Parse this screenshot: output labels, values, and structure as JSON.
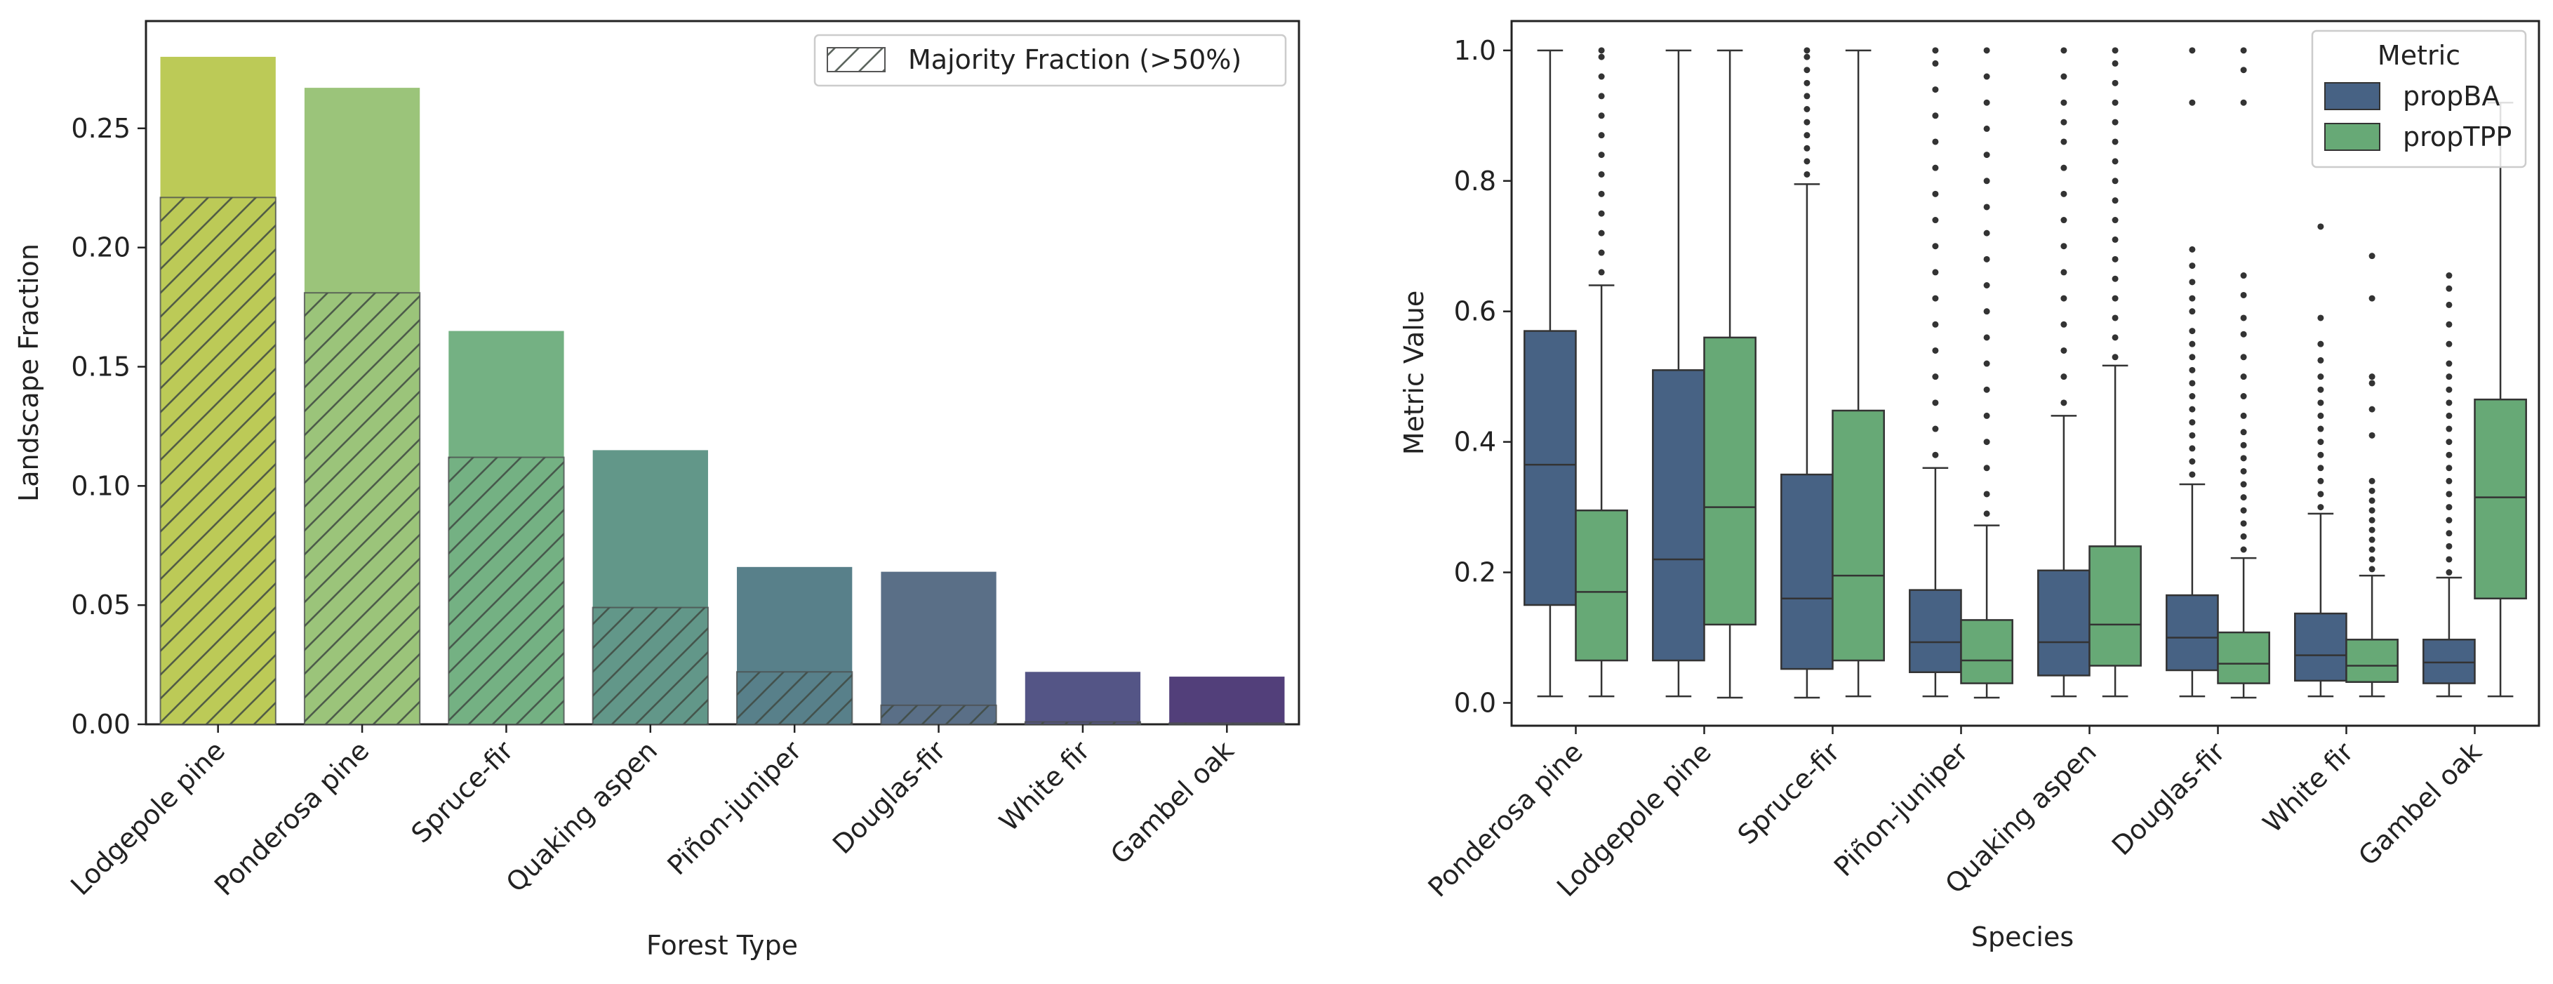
{
  "chart_data": [
    {
      "type": "bar",
      "title": "",
      "xlabel": "Forest Type",
      "ylabel": "Landscape Fraction",
      "ylim": [
        0,
        0.295
      ],
      "yticks": [
        "0.00",
        "0.05",
        "0.10",
        "0.15",
        "0.20",
        "0.25"
      ],
      "categories": [
        "Lodgepole pine",
        "Ponderosa pine",
        "Spruce-fir",
        "Quaking aspen",
        "Piñon-juniper",
        "Douglas-fir",
        "White fir",
        "Gambel oak"
      ],
      "series": [
        {
          "values": [
            0.28,
            0.267,
            0.165,
            0.115,
            0.066,
            0.064,
            0.022,
            0.02
          ]
        },
        {
          "name": "Majority Fraction (>50%)",
          "values": [
            0.221,
            0.181,
            0.112,
            0.049,
            0.022,
            0.008,
            0.001,
            0.0005
          ]
        }
      ],
      "bar_colors": [
        "#bcca57",
        "#9bc47a",
        "#74b183",
        "#629789",
        "#58808a",
        "#5a6f87",
        "#545586",
        "#523f7a"
      ],
      "legend": {
        "placement": "top-right",
        "label": "Majority Fraction (>50%)"
      },
      "grid": false
    },
    {
      "type": "box",
      "title": "",
      "xlabel": "Species",
      "ylabel": "Metric Value",
      "ylim": [
        -0.035,
        1.045
      ],
      "yticks": [
        "0.0",
        "0.2",
        "0.4",
        "0.6",
        "0.8",
        "1.0"
      ],
      "categories": [
        "Ponderosa pine",
        "Lodgepole pine",
        "Spruce-fir",
        "Piñon-juniper",
        "Quaking aspen",
        "Douglas-fir",
        "White fir",
        "Gambel oak"
      ],
      "legend": {
        "title": "Metric",
        "placement": "top-right"
      },
      "grid": false,
      "series": [
        {
          "name": "propBA",
          "color": "#476284",
          "boxes": [
            {
              "whislo": 0.01,
              "q1": 0.15,
              "med": 0.365,
              "q3": 0.57,
              "whishi": 1.0,
              "fliers": []
            },
            {
              "whislo": 0.01,
              "q1": 0.065,
              "med": 0.22,
              "q3": 0.51,
              "whishi": 1.0,
              "fliers": []
            },
            {
              "whislo": 0.008,
              "q1": 0.052,
              "med": 0.16,
              "q3": 0.35,
              "whishi": 0.795,
              "fliers": [
                0.81,
                0.83,
                0.85,
                0.87,
                0.89,
                0.91,
                0.93,
                0.95,
                0.97,
                0.99,
                1.0
              ]
            },
            {
              "whislo": 0.01,
              "q1": 0.047,
              "med": 0.093,
              "q3": 0.173,
              "whishi": 0.36,
              "fliers": [
                0.38,
                0.42,
                0.46,
                0.5,
                0.54,
                0.58,
                0.62,
                0.66,
                0.7,
                0.74,
                0.78,
                0.82,
                0.86,
                0.9,
                0.94,
                0.98,
                1.0
              ]
            },
            {
              "whislo": 0.01,
              "q1": 0.042,
              "med": 0.093,
              "q3": 0.203,
              "whishi": 0.44,
              "fliers": [
                0.46,
                0.5,
                0.54,
                0.58,
                0.62,
                0.66,
                0.7,
                0.74,
                0.78,
                0.82,
                0.86,
                0.89,
                0.92,
                0.96,
                1.0
              ]
            },
            {
              "whislo": 0.01,
              "q1": 0.05,
              "med": 0.1,
              "q3": 0.165,
              "whishi": 0.335,
              "fliers": [
                0.35,
                0.37,
                0.39,
                0.41,
                0.43,
                0.45,
                0.47,
                0.49,
                0.51,
                0.53,
                0.55,
                0.57,
                0.6,
                0.62,
                0.645,
                0.67,
                0.695,
                0.92,
                1.0
              ]
            },
            {
              "whislo": 0.01,
              "q1": 0.034,
              "med": 0.073,
              "q3": 0.137,
              "whishi": 0.29,
              "fliers": [
                0.3,
                0.32,
                0.34,
                0.36,
                0.38,
                0.4,
                0.42,
                0.44,
                0.46,
                0.48,
                0.5,
                0.525,
                0.55,
                0.59,
                0.73
              ]
            },
            {
              "whislo": 0.01,
              "q1": 0.03,
              "med": 0.062,
              "q3": 0.097,
              "whishi": 0.192,
              "fliers": [
                0.2,
                0.22,
                0.24,
                0.26,
                0.28,
                0.3,
                0.32,
                0.34,
                0.36,
                0.38,
                0.4,
                0.42,
                0.44,
                0.46,
                0.48,
                0.5,
                0.52,
                0.55,
                0.58,
                0.61,
                0.635,
                0.655
              ]
            }
          ]
        },
        {
          "name": "propTPP",
          "color": "#67a976",
          "boxes": [
            {
              "whislo": 0.01,
              "q1": 0.065,
              "med": 0.17,
              "q3": 0.295,
              "whishi": 0.64,
              "fliers": [
                0.66,
                0.69,
                0.72,
                0.75,
                0.78,
                0.81,
                0.84,
                0.87,
                0.9,
                0.93,
                0.96,
                0.99,
                1.0
              ]
            },
            {
              "whislo": 0.008,
              "q1": 0.12,
              "med": 0.3,
              "q3": 0.56,
              "whishi": 1.0,
              "fliers": []
            },
            {
              "whislo": 0.01,
              "q1": 0.065,
              "med": 0.195,
              "q3": 0.448,
              "whishi": 1.0,
              "fliers": []
            },
            {
              "whislo": 0.008,
              "q1": 0.03,
              "med": 0.065,
              "q3": 0.127,
              "whishi": 0.272,
              "fliers": [
                0.29,
                0.32,
                0.36,
                0.4,
                0.44,
                0.48,
                0.52,
                0.56,
                0.6,
                0.64,
                0.68,
                0.72,
                0.76,
                0.8,
                0.84,
                0.88,
                0.92,
                0.96,
                1.0
              ]
            },
            {
              "whislo": 0.01,
              "q1": 0.057,
              "med": 0.12,
              "q3": 0.24,
              "whishi": 0.517,
              "fliers": [
                0.53,
                0.56,
                0.59,
                0.62,
                0.65,
                0.68,
                0.71,
                0.74,
                0.77,
                0.8,
                0.83,
                0.86,
                0.89,
                0.92,
                0.95,
                0.98,
                1.0
              ]
            },
            {
              "whislo": 0.008,
              "q1": 0.03,
              "med": 0.06,
              "q3": 0.108,
              "whishi": 0.222,
              "fliers": [
                0.235,
                0.255,
                0.275,
                0.295,
                0.315,
                0.335,
                0.355,
                0.375,
                0.395,
                0.415,
                0.44,
                0.47,
                0.5,
                0.53,
                0.565,
                0.59,
                0.625,
                0.655,
                0.92,
                0.97,
                1.0
              ]
            },
            {
              "whislo": 0.01,
              "q1": 0.032,
              "med": 0.057,
              "q3": 0.097,
              "whishi": 0.195,
              "fliers": [
                0.205,
                0.22,
                0.235,
                0.25,
                0.265,
                0.28,
                0.295,
                0.31,
                0.325,
                0.34,
                0.41,
                0.45,
                0.49,
                0.5,
                0.62,
                0.685
              ]
            },
            {
              "whislo": 0.01,
              "q1": 0.16,
              "med": 0.315,
              "q3": 0.465,
              "whishi": 0.92,
              "fliers": []
            }
          ]
        }
      ]
    }
  ]
}
